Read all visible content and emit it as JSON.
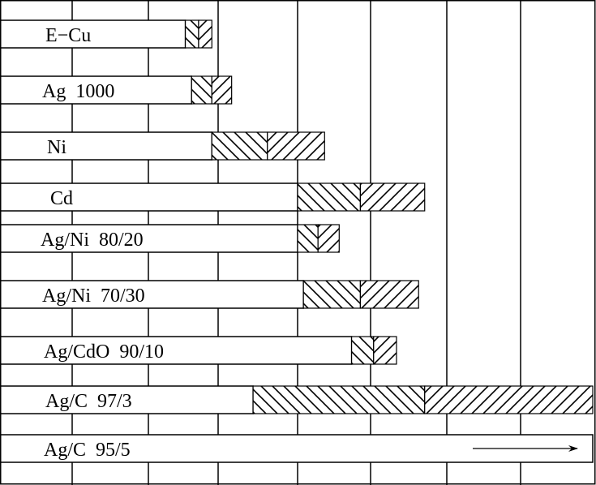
{
  "chart_data": {
    "type": "bar",
    "orientation": "horizontal",
    "grid": true,
    "grid_columns": 8,
    "colors": {
      "line": "#000000",
      "bar_fill": "#ffffff"
    },
    "categories": [
      "E−Cu",
      "Ag  1000",
      "Ni",
      "Cd",
      "Ag/Ni  80/20",
      "Ag/Ni  70/30",
      "Ag/CdO  90/10",
      "Ag/C  97/3",
      "Ag/C  95/5"
    ],
    "bars": [
      {
        "label": "E−Cu",
        "plain_end": 2.53,
        "hatch_split": 2.72,
        "hatch_end": 2.91
      },
      {
        "label": "Ag  1000",
        "plain_end": 2.62,
        "hatch_split": 2.91,
        "hatch_end": 3.17
      },
      {
        "label": "Ni",
        "plain_end": 2.91,
        "hatch_split": 3.62,
        "hatch_end": 4.37
      },
      {
        "label": "Cd",
        "plain_end": 4.0,
        "hatch_split": 4.86,
        "hatch_end": 5.71
      },
      {
        "label": "Ag/Ni  80/20",
        "plain_end": 4.0,
        "hatch_split": 4.28,
        "hatch_end": 4.57
      },
      {
        "label": "Ag/Ni  70/30",
        "plain_end": 4.08,
        "hatch_split": 4.86,
        "hatch_end": 5.63
      },
      {
        "label": "Ag/CdO  90/10",
        "plain_end": 4.74,
        "hatch_split": 5.04,
        "hatch_end": 5.34
      },
      {
        "label": "Ag/C  97/3",
        "plain_end": 3.44,
        "hatch_split": 5.71,
        "hatch_end": 8.0
      },
      {
        "label": "Ag/C  95/5",
        "plain_end": 8.0,
        "continues_arrow": true
      }
    ]
  }
}
